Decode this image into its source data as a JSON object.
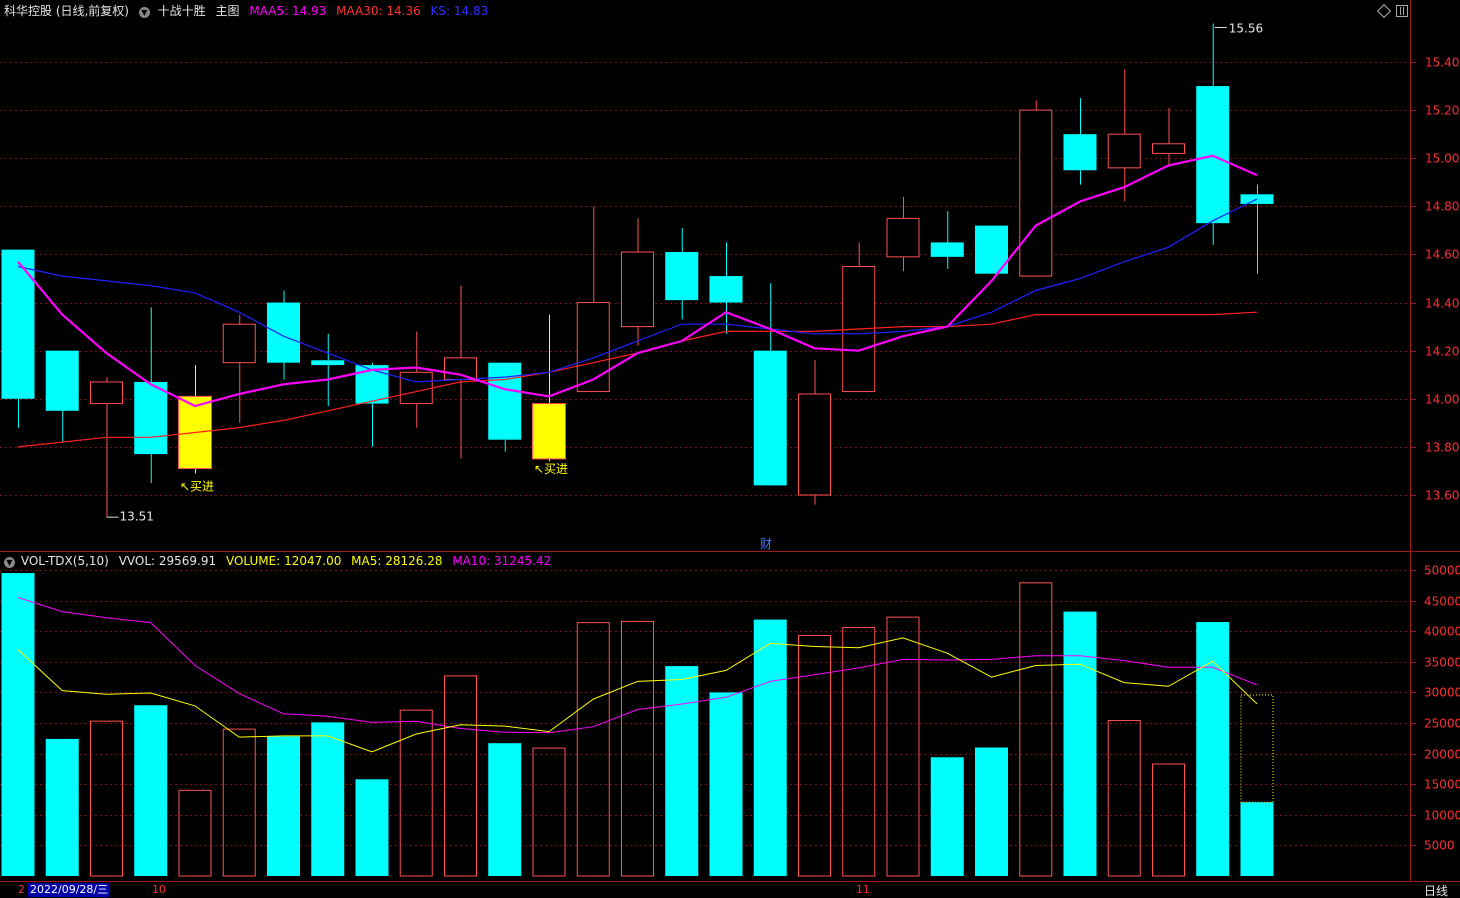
{
  "header": {
    "stock": "科华控股 (日线,前复权)",
    "indicator": "十战十胜",
    "main": "主图",
    "ma5_label": "MAA5: 14.93",
    "ma30_label": "MAA30: 14.36",
    "ks_label": "KS: 14.83"
  },
  "vol_header": {
    "name": "VOL-TDX(5,10)",
    "vvol": "VVOL: 29569.91",
    "volume": "VOLUME: 12047.00",
    "ma5": "MA5: 28126.28",
    "ma10": "MA10: 31245.42"
  },
  "footer": {
    "date": "2022/09/28/三",
    "month_oct": "10",
    "month_nov": "11",
    "period": "日线",
    "left_mark": "2"
  },
  "annotations": {
    "high": "15.56",
    "low": "13.51",
    "buy1": "买进",
    "buy2": "买进",
    "cai": "财"
  },
  "colors": {
    "up": "#ff5050",
    "down": "#00ffff",
    "buy": "#ffff00",
    "maa5": "#ff00ff",
    "maa30": "#ff2020",
    "ks": "#2020ff",
    "vol_ma5": "#ffff00",
    "vol_ma10": "#ff00ff"
  },
  "chart_data": {
    "type": "candlestick",
    "price_ticks": [
      "15.40",
      "15.20",
      "15.00",
      "14.80",
      "14.60",
      "14.40",
      "14.20",
      "14.00",
      "13.80",
      "13.60"
    ],
    "vol_ticks": [
      "50000",
      "45000",
      "40000",
      "35000",
      "30000",
      "25000",
      "20000",
      "15000",
      "10000",
      "5000"
    ],
    "candles": [
      {
        "o": 14.62,
        "c": 14.0,
        "h": 14.62,
        "l": 13.88
      },
      {
        "o": 14.2,
        "c": 13.95,
        "h": 14.2,
        "l": 13.82
      },
      {
        "o": 13.98,
        "c": 14.07,
        "h": 14.09,
        "l": 13.51
      },
      {
        "o": 14.07,
        "c": 13.77,
        "h": 14.38,
        "l": 13.65
      },
      {
        "o": 14.01,
        "c": 13.71,
        "h": 14.14,
        "l": 13.69,
        "buy": true
      },
      {
        "o": 14.15,
        "c": 14.31,
        "h": 14.35,
        "l": 13.9
      },
      {
        "o": 14.4,
        "c": 14.15,
        "h": 14.45,
        "l": 14.08
      },
      {
        "o": 14.16,
        "c": 14.14,
        "h": 14.27,
        "l": 13.97
      },
      {
        "o": 14.14,
        "c": 13.98,
        "h": 14.15,
        "l": 13.8
      },
      {
        "o": 13.98,
        "c": 14.11,
        "h": 14.28,
        "l": 13.88
      },
      {
        "o": 14.08,
        "c": 14.17,
        "h": 14.47,
        "l": 13.75
      },
      {
        "o": 14.15,
        "c": 13.83,
        "h": 14.15,
        "l": 13.78
      },
      {
        "o": 13.75,
        "c": 13.98,
        "h": 14.35,
        "l": 13.74,
        "buy": true
      },
      {
        "o": 14.03,
        "c": 14.4,
        "h": 14.8,
        "l": 14.03
      },
      {
        "o": 14.3,
        "c": 14.61,
        "h": 14.75,
        "l": 14.22
      },
      {
        "o": 14.61,
        "c": 14.41,
        "h": 14.71,
        "l": 14.33
      },
      {
        "o": 14.51,
        "c": 14.4,
        "h": 14.65,
        "l": 14.27
      },
      {
        "o": 14.2,
        "c": 13.64,
        "h": 14.48,
        "l": 13.64
      },
      {
        "o": 13.6,
        "c": 14.02,
        "h": 14.16,
        "l": 13.56
      },
      {
        "o": 14.03,
        "c": 14.55,
        "h": 14.65,
        "l": 14.03
      },
      {
        "o": 14.59,
        "c": 14.75,
        "h": 14.84,
        "l": 14.53
      },
      {
        "o": 14.65,
        "c": 14.59,
        "h": 14.78,
        "l": 14.54
      },
      {
        "o": 14.72,
        "c": 14.52,
        "h": 14.72,
        "l": 14.52
      },
      {
        "o": 14.51,
        "c": 15.2,
        "h": 15.24,
        "l": 14.51
      },
      {
        "o": 15.1,
        "c": 14.95,
        "h": 15.25,
        "l": 14.89
      },
      {
        "o": 14.96,
        "c": 15.1,
        "h": 15.37,
        "l": 14.82
      },
      {
        "o": 15.02,
        "c": 15.06,
        "h": 15.21,
        "l": 14.97
      },
      {
        "o": 15.3,
        "c": 14.73,
        "h": 15.56,
        "l": 14.64
      },
      {
        "o": 14.85,
        "c": 14.81,
        "h": 14.89,
        "l": 14.52
      }
    ],
    "maa5": [
      14.57,
      14.35,
      14.19,
      14.06,
      13.97,
      14.02,
      14.06,
      14.08,
      14.12,
      14.13,
      14.1,
      14.04,
      14.01,
      14.08,
      14.19,
      14.24,
      14.36,
      14.29,
      14.21,
      14.2,
      14.26,
      14.3,
      14.49,
      14.72,
      14.82,
      14.88,
      14.97,
      15.01,
      14.93
    ],
    "maa30": [
      13.8,
      13.82,
      13.84,
      13.84,
      13.86,
      13.88,
      13.91,
      13.95,
      13.99,
      14.03,
      14.07,
      14.08,
      14.11,
      14.15,
      14.19,
      14.24,
      14.28,
      14.28,
      14.28,
      14.29,
      14.3,
      14.3,
      14.31,
      14.35,
      14.35,
      14.35,
      14.35,
      14.35,
      14.36
    ],
    "ks": [
      14.55,
      14.51,
      14.49,
      14.47,
      14.44,
      14.36,
      14.26,
      14.19,
      14.12,
      14.07,
      14.08,
      14.09,
      14.11,
      14.17,
      14.24,
      14.31,
      14.31,
      14.29,
      14.27,
      14.27,
      14.28,
      14.3,
      14.36,
      14.45,
      14.5,
      14.57,
      14.63,
      14.74,
      14.83
    ],
    "volume": [
      {
        "v": 49500,
        "d": "down"
      },
      {
        "v": 22400,
        "d": "down"
      },
      {
        "v": 25300,
        "d": "up"
      },
      {
        "v": 27900,
        "d": "down"
      },
      {
        "v": 14000,
        "d": "up"
      },
      {
        "v": 24000,
        "d": "up"
      },
      {
        "v": 22800,
        "d": "down"
      },
      {
        "v": 25100,
        "d": "down"
      },
      {
        "v": 15800,
        "d": "down"
      },
      {
        "v": 27100,
        "d": "up"
      },
      {
        "v": 32700,
        "d": "up"
      },
      {
        "v": 21700,
        "d": "down"
      },
      {
        "v": 20900,
        "d": "up"
      },
      {
        "v": 41400,
        "d": "up"
      },
      {
        "v": 41600,
        "d": "up"
      },
      {
        "v": 34300,
        "d": "down"
      },
      {
        "v": 30000,
        "d": "down"
      },
      {
        "v": 41900,
        "d": "down"
      },
      {
        "v": 39300,
        "d": "up"
      },
      {
        "v": 40600,
        "d": "up"
      },
      {
        "v": 42300,
        "d": "up"
      },
      {
        "v": 19400,
        "d": "down"
      },
      {
        "v": 21000,
        "d": "down"
      },
      {
        "v": 47900,
        "d": "up"
      },
      {
        "v": 43200,
        "d": "down"
      },
      {
        "v": 25400,
        "d": "up"
      },
      {
        "v": 18300,
        "d": "up"
      },
      {
        "v": 41500,
        "d": "down"
      },
      {
        "v": 12047,
        "d": "down",
        "vvol": 29569.91
      }
    ],
    "vol_ma5": [
      37000,
      30300,
      29700,
      29900,
      27800,
      22700,
      22900,
      22900,
      20300,
      23200,
      24700,
      24500,
      23600,
      28900,
      31800,
      32100,
      33600,
      38000,
      37500,
      37300,
      38900,
      36400,
      32500,
      34400,
      34600,
      31600,
      31000,
      35100,
      28126
    ],
    "vol_ma10": [
      45500,
      43200,
      42200,
      41400,
      34400,
      29800,
      26500,
      26100,
      25100,
      25300,
      24100,
      23500,
      23400,
      24400,
      27200,
      28100,
      29200,
      31800,
      32900,
      34000,
      35400,
      35300,
      35400,
      36000,
      36000,
      35200,
      34100,
      34100,
      31245
    ]
  }
}
